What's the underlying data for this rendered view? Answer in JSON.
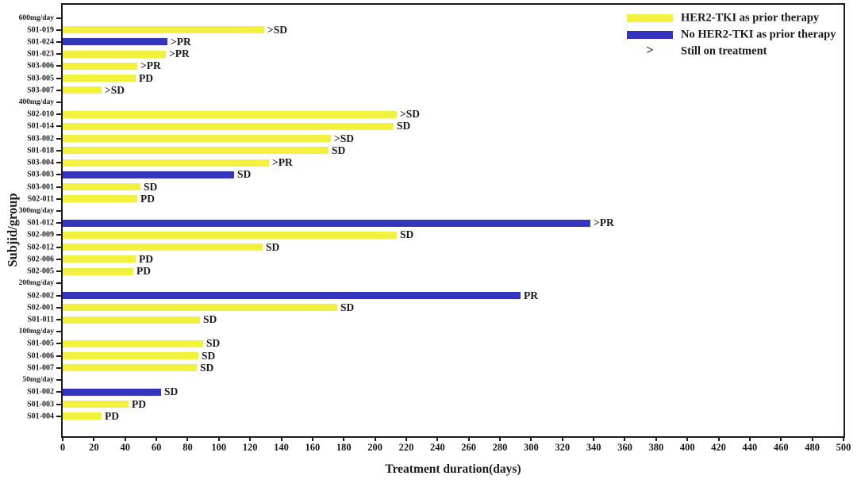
{
  "figure": {
    "x_axis_title": "Treatment duration(days)",
    "y_axis_title": "Subjid/group"
  },
  "legend": {
    "items": [
      {
        "swatch": "her2_tki_prior",
        "label": "HER2-TKI as prior therapy"
      },
      {
        "swatch": "no_her2_tki_prior",
        "label": "No HER2-TKI as prior therapy"
      },
      {
        "symbol": ">",
        "label": "Still on treatment"
      }
    ]
  },
  "colors": {
    "her2_tki_prior": "#f2f23e",
    "no_her2_tki_prior": "#3434bd",
    "axis": "#1c1c1c"
  },
  "chart_data": {
    "type": "bar",
    "orientation": "horizontal",
    "title": "",
    "xlabel": "Treatment duration(days)",
    "ylabel": "Subjid/group",
    "xlim": [
      0,
      500
    ],
    "xtick_step": 20,
    "grid": false,
    "legend_position": "top-right",
    "series_legend": {
      "yellow": "HER2-TKI as prior therapy",
      "blue": "No HER2-TKI as prior therapy",
      "arrow": "Still on treatment"
    },
    "groups": [
      {
        "group": "600mg/day",
        "subjects": [
          {
            "id": "S01-019",
            "days": 129,
            "prior_her2_tki": true,
            "still_on_treatment": true,
            "response": "SD"
          },
          {
            "id": "S01-024",
            "days": 67,
            "prior_her2_tki": false,
            "still_on_treatment": true,
            "response": "PR"
          },
          {
            "id": "S01-023",
            "days": 66,
            "prior_her2_tki": true,
            "still_on_treatment": true,
            "response": "PR"
          },
          {
            "id": "S03-006",
            "days": 48,
            "prior_her2_tki": true,
            "still_on_treatment": true,
            "response": "PR"
          },
          {
            "id": "S03-005",
            "days": 47,
            "prior_her2_tki": true,
            "still_on_treatment": false,
            "response": "PD"
          },
          {
            "id": "S03-007",
            "days": 25,
            "prior_her2_tki": true,
            "still_on_treatment": true,
            "response": "SD"
          }
        ]
      },
      {
        "group": "400mg/day",
        "subjects": [
          {
            "id": "S02-010",
            "days": 214,
            "prior_her2_tki": true,
            "still_on_treatment": true,
            "response": "SD"
          },
          {
            "id": "S01-014",
            "days": 212,
            "prior_her2_tki": true,
            "still_on_treatment": false,
            "response": "SD"
          },
          {
            "id": "S03-002",
            "days": 172,
            "prior_her2_tki": true,
            "still_on_treatment": true,
            "response": "SD"
          },
          {
            "id": "S01-018",
            "days": 170,
            "prior_her2_tki": true,
            "still_on_treatment": false,
            "response": "SD"
          },
          {
            "id": "S03-004",
            "days": 132,
            "prior_her2_tki": true,
            "still_on_treatment": true,
            "response": "PR"
          },
          {
            "id": "S03-003",
            "days": 110,
            "prior_her2_tki": false,
            "still_on_treatment": false,
            "response": "SD"
          },
          {
            "id": "S03-001",
            "days": 50,
            "prior_her2_tki": true,
            "still_on_treatment": false,
            "response": "SD"
          },
          {
            "id": "S02-011",
            "days": 48,
            "prior_her2_tki": true,
            "still_on_treatment": false,
            "response": "PD"
          }
        ]
      },
      {
        "group": "300mg/day",
        "subjects": [
          {
            "id": "S01-012",
            "days": 338,
            "prior_her2_tki": false,
            "still_on_treatment": true,
            "response": "PR"
          },
          {
            "id": "S02-009",
            "days": 214,
            "prior_her2_tki": true,
            "still_on_treatment": false,
            "response": "SD"
          },
          {
            "id": "S02-012",
            "days": 128,
            "prior_her2_tki": true,
            "still_on_treatment": false,
            "response": "SD"
          },
          {
            "id": "S02-006",
            "days": 47,
            "prior_her2_tki": true,
            "still_on_treatment": false,
            "response": "PD"
          },
          {
            "id": "S02-005",
            "days": 45,
            "prior_her2_tki": true,
            "still_on_treatment": false,
            "response": "PD"
          }
        ]
      },
      {
        "group": "200mg/day",
        "subjects": [
          {
            "id": "S02-002",
            "days": 293,
            "prior_her2_tki": false,
            "still_on_treatment": false,
            "response": "PR"
          },
          {
            "id": "S02-001",
            "days": 176,
            "prior_her2_tki": true,
            "still_on_treatment": false,
            "response": "SD"
          },
          {
            "id": "S01-011",
            "days": 88,
            "prior_her2_tki": true,
            "still_on_treatment": false,
            "response": "SD"
          }
        ]
      },
      {
        "group": "100mg/day",
        "subjects": [
          {
            "id": "S01-005",
            "days": 90,
            "prior_her2_tki": true,
            "still_on_treatment": false,
            "response": "SD"
          },
          {
            "id": "S01-006",
            "days": 87,
            "prior_her2_tki": true,
            "still_on_treatment": false,
            "response": "SD"
          },
          {
            "id": "S01-007",
            "days": 86,
            "prior_her2_tki": true,
            "still_on_treatment": false,
            "response": "SD"
          }
        ]
      },
      {
        "group": "50mg/day",
        "subjects": [
          {
            "id": "S01-002",
            "days": 63,
            "prior_her2_tki": false,
            "still_on_treatment": false,
            "response": "SD"
          },
          {
            "id": "S01-003",
            "days": 42,
            "prior_her2_tki": true,
            "still_on_treatment": false,
            "response": "PD"
          },
          {
            "id": "S01-004",
            "days": 25,
            "prior_her2_tki": true,
            "still_on_treatment": false,
            "response": "PD"
          }
        ]
      }
    ]
  }
}
